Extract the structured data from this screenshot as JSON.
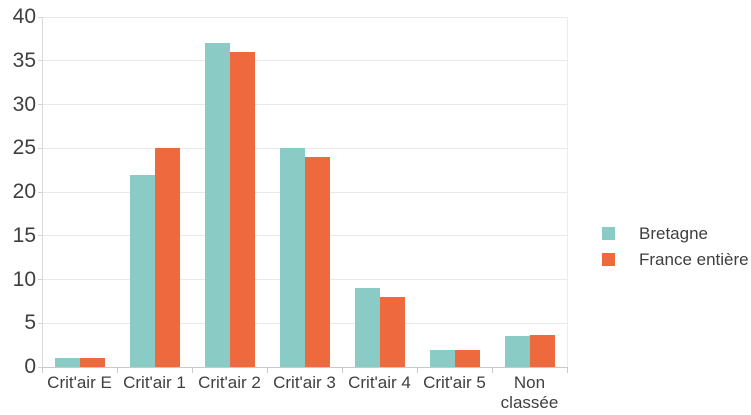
{
  "chart_data": {
    "type": "bar",
    "title": "",
    "xlabel": "",
    "ylabel": "",
    "categories": [
      "Crit'air E",
      "Crit'air 1",
      "Crit'air 2",
      "Crit'air 3",
      "Crit'air 4",
      "Crit'air 5",
      "Non classée"
    ],
    "series": [
      {
        "name": "Bretagne",
        "color": "#8ACCC5",
        "values": [
          1,
          22,
          37,
          25,
          9,
          2,
          3.5
        ]
      },
      {
        "name": "France entière",
        "color": "#EE693D",
        "values": [
          1,
          25,
          36,
          24,
          8,
          2,
          3.7
        ]
      }
    ],
    "ylim": [
      0,
      40
    ],
    "yticks": [
      0,
      5,
      10,
      15,
      20,
      25,
      30,
      35,
      40
    ],
    "grid": true,
    "legend_position": "right"
  },
  "colors": {
    "background": "#ffffff",
    "gridline": "#e9e9e9",
    "axis": "#c9c9c9",
    "text": "#3f3f3f",
    "series_bretagne": "#8ACCC5",
    "series_france": "#EE693D"
  }
}
